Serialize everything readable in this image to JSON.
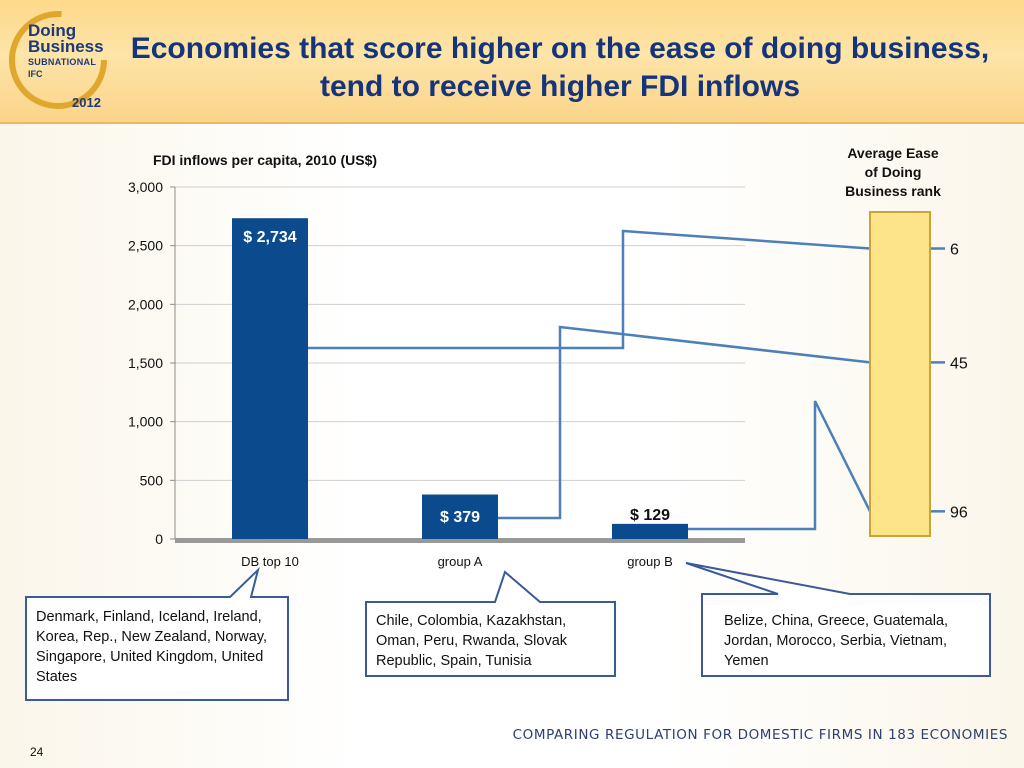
{
  "logo": {
    "line1": "Doing",
    "line2": "Business",
    "line3": "SUBNATIONAL",
    "line4": "IFC",
    "year": "2012"
  },
  "slide": {
    "title": "Economies that score higher on the ease of doing business, tend to receive higher FDI inflows",
    "footer": "COMPARING REGULATION FOR DOMESTIC FIRMS IN 183 ECONOMIES",
    "page_number": "24"
  },
  "callouts": [
    {
      "text": "Denmark, Finland, Iceland, Ireland, Korea, Rep., New Zealand, Norway, Singapore, United Kingdom, United States"
    },
    {
      "text": "Chile, Colombia, Kazakhstan, Oman, Peru, Rwanda, Slovak Republic, Spain, Tunisia"
    },
    {
      "text": "Belize, China, Greece, Guatemala, Jordan, Morocco, Serbia, Vietnam, Yemen"
    }
  ],
  "colors": {
    "bar": "#0c4a8e",
    "connector": "#4d7fb8",
    "rank_bar": "#fde488",
    "rank_bar_border": "#c9a634",
    "callout_border": "#3a5a9a",
    "axis": "#8c8c8c"
  },
  "chart_data": [
    {
      "type": "bar",
      "title": "FDI inflows per capita, 2010 (US$)",
      "categories": [
        "DB top 10",
        "group A",
        "group B"
      ],
      "values": [
        2734,
        379,
        129
      ],
      "data_labels": [
        "$ 2,734",
        "$ 379",
        "$ 129"
      ],
      "ylim": [
        0,
        3000
      ],
      "yticks": [
        0,
        500,
        1000,
        1500,
        2000,
        2500,
        3000
      ],
      "ytick_labels": [
        "0",
        "500",
        "1,000",
        "1,500",
        "2,000",
        "2,500",
        "3,000"
      ],
      "grid": true
    },
    {
      "type": "bar",
      "title": "Average Ease of Doing Business rank",
      "categories": [
        "DB top 10",
        "group A",
        "group B"
      ],
      "values": [
        6,
        45,
        96
      ],
      "data_labels": [
        "6",
        "45",
        "96"
      ]
    }
  ]
}
